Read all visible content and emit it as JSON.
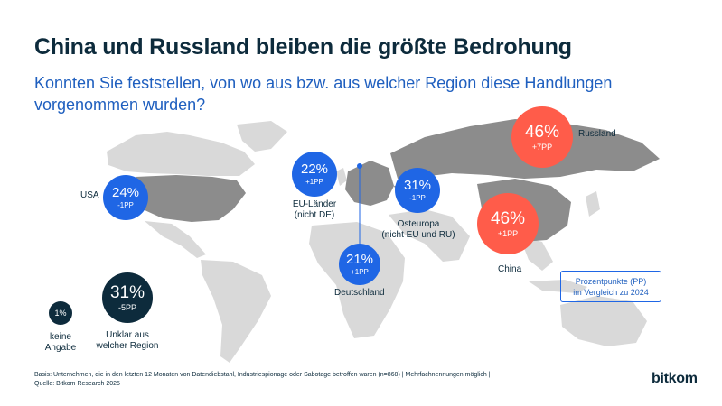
{
  "title": "China und Russland bleiben die größte Bedrohung",
  "subtitle": "Konnten Sie feststellen, von wo aus bzw. aus welcher Region diese Handlungen vorgenommen wurden?",
  "regions": {
    "russland": {
      "label": "Russland",
      "pct": "46%",
      "pp": "+7PP",
      "value": 46,
      "change_pp": 7
    },
    "china": {
      "label": "China",
      "pct": "46%",
      "pp": "+1PP",
      "value": 46,
      "change_pp": 1
    },
    "osteuropa": {
      "label_line1": "Osteuropa",
      "label_line2": "(nicht EU und RU)",
      "pct": "31%",
      "pp": "-1PP",
      "value": 31,
      "change_pp": -1
    },
    "usa": {
      "label": "USA",
      "pct": "24%",
      "pp": "-1PP",
      "value": 24,
      "change_pp": -1
    },
    "eu": {
      "label_line1": "EU-Länder",
      "label_line2": "(nicht DE)",
      "pct": "22%",
      "pp": "+1PP",
      "value": 22,
      "change_pp": 1
    },
    "deutschland": {
      "label": "Deutschland",
      "pct": "21%",
      "pp": "+1PP",
      "value": 21,
      "change_pp": 1
    },
    "unklar": {
      "label_line1": "Unklar aus",
      "label_line2": "welcher Region",
      "pct": "31%",
      "pp": "-5PP",
      "value": 31,
      "change_pp": -5
    },
    "keine": {
      "label_line1": "keine",
      "label_line2": "Angabe",
      "pct": "1%",
      "value": 1
    }
  },
  "legend": {
    "line1": "Prozentpunkte (PP)",
    "line2": "im Vergleich zu 2024"
  },
  "footer": {
    "line1": "Basis: Unternehmen, die in den letzten 12 Monaten von Datendiebstahl, Industriespionage oder Sabotage betroffen waren (n=868) | Mehrfachnennungen möglich |",
    "line2": "Quelle: Bitkom Research 2025"
  },
  "logo": "bitkom",
  "colors": {
    "increase_highlight": "#ff5c4a",
    "region": "#1f66e5",
    "dark": "#0d2b3c",
    "map_land": "#d9d9d9",
    "map_highlight": "#8c8c8c"
  }
}
